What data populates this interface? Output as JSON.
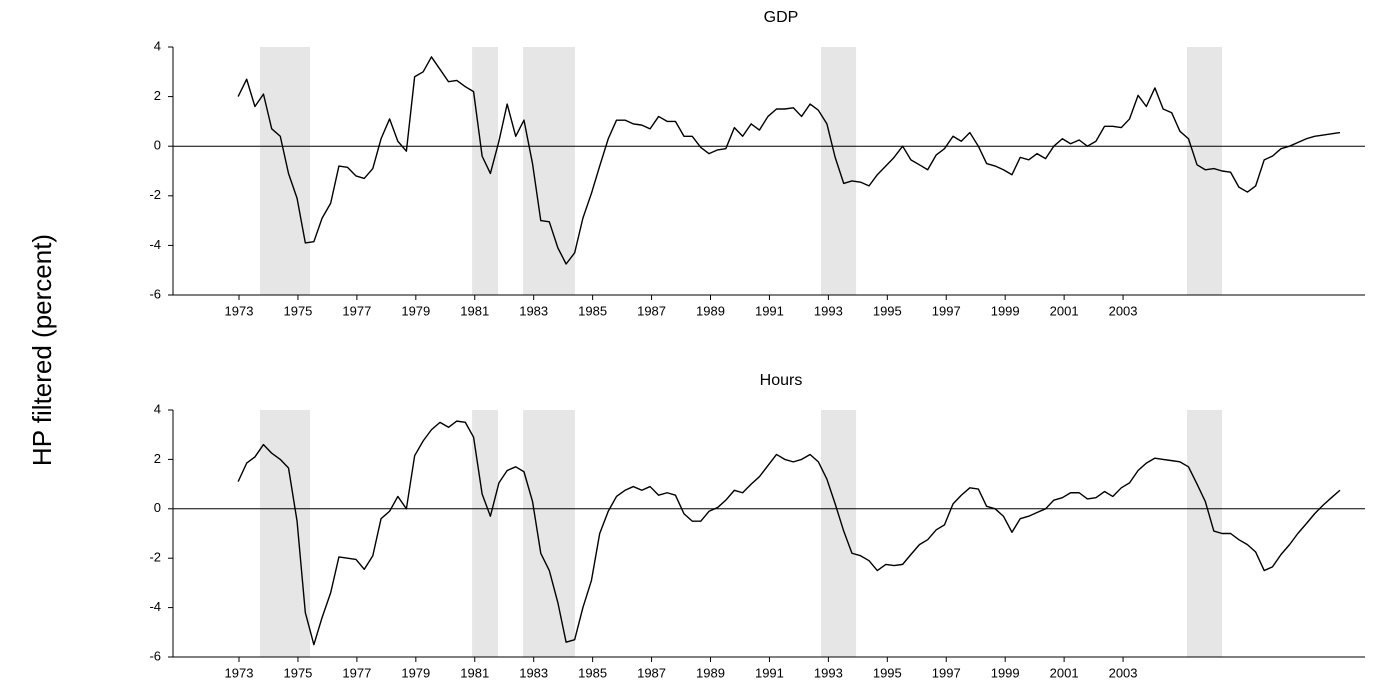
{
  "ylabel": "HP filtered (percent)",
  "chart_data": [
    {
      "type": "line",
      "title": "GDP",
      "color": "#000000",
      "shade_color": "#e6e6e6",
      "xlim": [
        1970.76,
        2011.21
      ],
      "ylim": [
        -6,
        4
      ],
      "yticks": [
        -6,
        -4,
        -2,
        0,
        2,
        4
      ],
      "xticks": [
        1973,
        1975,
        1977,
        1979,
        1981,
        1983,
        1985,
        1987,
        1989,
        1991,
        1993,
        1995,
        1997,
        1999,
        2001,
        2003
      ],
      "shaded_periods": [
        [
          1973.71,
          1975.41
        ],
        [
          1980.91,
          1981.79
        ],
        [
          1982.64,
          1984.4
        ],
        [
          1992.75,
          1993.94
        ],
        [
          2005.17,
          2006.36
        ]
      ],
      "x": [
        1972.97,
        1973.26,
        1973.54,
        1973.83,
        1974.11,
        1974.4,
        1974.68,
        1974.97,
        1975.25,
        1975.54,
        1975.82,
        1976.11,
        1976.39,
        1976.68,
        1976.97,
        1977.25,
        1977.54,
        1977.82,
        1978.11,
        1978.39,
        1978.68,
        1978.96,
        1979.25,
        1979.53,
        1979.82,
        1980.11,
        1980.39,
        1980.68,
        1980.96,
        1981.25,
        1981.53,
        1981.82,
        1982.1,
        1982.39,
        1982.67,
        1982.96,
        1983.24,
        1983.53,
        1983.82,
        1984.1,
        1984.39,
        1984.67,
        1984.96,
        1985.24,
        1985.53,
        1985.81,
        1986.1,
        1986.38,
        1986.67,
        1986.95,
        1987.24,
        1987.53,
        1987.81,
        1988.1,
        1988.38,
        1988.67,
        1988.95,
        1989.24,
        1989.52,
        1989.81,
        1990.09,
        1990.38,
        1990.66,
        1990.95,
        1991.24,
        1991.52,
        1991.81,
        1992.09,
        1992.38,
        1992.66,
        1992.95,
        1993.23,
        1993.52,
        1993.8,
        1994.09,
        1994.38,
        1994.66,
        1994.95,
        1995.23,
        1995.52,
        1995.8,
        1996.09,
        1996.37,
        1996.66,
        1996.94,
        1997.23,
        1997.51,
        1997.8,
        1998.09,
        1998.37,
        1998.66,
        1998.94,
        1999.23,
        1999.51,
        1999.8,
        2000.08,
        2000.37,
        2000.65,
        2000.94,
        2001.22,
        2001.51,
        2001.79,
        2002.08,
        2002.37,
        2002.65,
        2002.94,
        2003.22,
        2003.51,
        2003.79,
        2004.08,
        2004.36,
        2004.65,
        2004.93,
        2005.22,
        2005.51,
        2005.79,
        2006.08,
        2006.36,
        2006.65,
        2006.93,
        2007.22,
        2007.5,
        2007.79,
        2008.07,
        2008.36,
        2008.65,
        2008.93,
        2009.22,
        2009.5,
        2009.79,
        2010.07,
        2010.36
      ],
      "values": [
        2.0,
        2.7,
        1.6,
        2.1,
        0.7,
        0.4,
        -1.1,
        -2.1,
        -3.9,
        -3.85,
        -2.9,
        -2.3,
        -0.8,
        -0.85,
        -1.2,
        -1.3,
        -0.9,
        0.3,
        1.1,
        0.2,
        -0.2,
        2.8,
        3.0,
        3.6,
        3.1,
        2.6,
        2.65,
        2.4,
        2.2,
        -0.4,
        -1.1,
        0.2,
        1.7,
        0.4,
        1.05,
        -0.7,
        -3.0,
        -3.05,
        -4.1,
        -4.75,
        -4.3,
        -2.9,
        -1.9,
        -0.8,
        0.3,
        1.05,
        1.05,
        0.9,
        0.85,
        0.7,
        1.2,
        1.0,
        1.0,
        0.4,
        0.4,
        -0.05,
        -0.3,
        -0.15,
        -0.1,
        0.75,
        0.4,
        0.9,
        0.65,
        1.2,
        1.5,
        1.5,
        1.55,
        1.2,
        1.7,
        1.45,
        0.9,
        -0.45,
        -1.5,
        -1.4,
        -1.45,
        -1.6,
        -1.15,
        -0.8,
        -0.45,
        0.0,
        -0.55,
        -0.75,
        -0.95,
        -0.35,
        -0.1,
        0.4,
        0.2,
        0.55,
        0.0,
        -0.7,
        -0.8,
        -0.95,
        -1.15,
        -0.45,
        -0.55,
        -0.3,
        -0.5,
        0.0,
        0.3,
        0.1,
        0.25,
        0.0,
        0.2,
        0.8,
        0.8,
        0.75,
        1.1,
        2.05,
        1.6,
        2.35,
        1.5,
        1.35,
        0.6,
        0.3,
        -0.75,
        -0.95,
        -0.9,
        -1.0,
        -1.05,
        -1.65,
        -1.85,
        -1.6,
        -0.55,
        -0.4,
        -0.1,
        0.0,
        0.15,
        0.3,
        0.4,
        0.45,
        0.5,
        0.55
      ]
    },
    {
      "type": "line",
      "title": "Hours",
      "color": "#000000",
      "shade_color": "#e6e6e6",
      "xlim": [
        1970.76,
        2011.21
      ],
      "ylim": [
        -6,
        4
      ],
      "yticks": [
        -6,
        -4,
        -2,
        0,
        2,
        4
      ],
      "xticks": [
        1973,
        1975,
        1977,
        1979,
        1981,
        1983,
        1985,
        1987,
        1989,
        1991,
        1993,
        1995,
        1997,
        1999,
        2001,
        2003
      ],
      "shaded_periods": [
        [
          1973.71,
          1975.41
        ],
        [
          1980.91,
          1981.79
        ],
        [
          1982.64,
          1984.4
        ],
        [
          1992.75,
          1993.94
        ],
        [
          2005.17,
          2006.36
        ]
      ],
      "x": [
        1972.97,
        1973.26,
        1973.54,
        1973.83,
        1974.11,
        1974.4,
        1974.68,
        1974.97,
        1975.25,
        1975.54,
        1975.82,
        1976.11,
        1976.39,
        1976.68,
        1976.97,
        1977.25,
        1977.54,
        1977.82,
        1978.11,
        1978.39,
        1978.68,
        1978.96,
        1979.25,
        1979.53,
        1979.82,
        1980.11,
        1980.39,
        1980.68,
        1980.96,
        1981.25,
        1981.53,
        1981.82,
        1982.1,
        1982.39,
        1982.67,
        1982.96,
        1983.24,
        1983.53,
        1983.82,
        1984.1,
        1984.39,
        1984.67,
        1984.96,
        1985.24,
        1985.53,
        1985.81,
        1986.1,
        1986.38,
        1986.67,
        1986.95,
        1987.24,
        1987.53,
        1987.81,
        1988.1,
        1988.38,
        1988.67,
        1988.95,
        1989.24,
        1989.52,
        1989.81,
        1990.09,
        1990.38,
        1990.66,
        1990.95,
        1991.24,
        1991.52,
        1991.81,
        1992.09,
        1992.38,
        1992.66,
        1992.95,
        1993.23,
        1993.52,
        1993.8,
        1994.09,
        1994.38,
        1994.66,
        1994.95,
        1995.23,
        1995.52,
        1995.8,
        1996.09,
        1996.37,
        1996.66,
        1996.94,
        1997.23,
        1997.51,
        1997.8,
        1998.09,
        1998.37,
        1998.66,
        1998.94,
        1999.23,
        1999.51,
        1999.8,
        2000.08,
        2000.37,
        2000.65,
        2000.94,
        2001.22,
        2001.51,
        2001.79,
        2002.08,
        2002.37,
        2002.65,
        2002.94,
        2003.22,
        2003.51,
        2003.79,
        2004.08,
        2004.36,
        2004.65,
        2004.93,
        2005.22,
        2005.51,
        2005.79,
        2006.08,
        2006.36,
        2006.65,
        2006.93,
        2007.22,
        2007.5,
        2007.79,
        2008.07,
        2008.36,
        2008.65,
        2008.93,
        2009.22,
        2009.5,
        2009.79,
        2010.07,
        2010.36
      ],
      "values": [
        1.1,
        1.85,
        2.1,
        2.6,
        2.25,
        2.0,
        1.65,
        -0.5,
        -4.2,
        -5.5,
        -4.4,
        -3.4,
        -1.95,
        -2.0,
        -2.05,
        -2.45,
        -1.9,
        -0.4,
        -0.1,
        0.5,
        0.0,
        2.15,
        2.75,
        3.2,
        3.5,
        3.3,
        3.55,
        3.5,
        2.9,
        0.6,
        -0.3,
        1.05,
        1.55,
        1.7,
        1.5,
        0.3,
        -1.8,
        -2.5,
        -3.8,
        -5.4,
        -5.3,
        -4.0,
        -2.9,
        -1.0,
        -0.1,
        0.5,
        0.75,
        0.9,
        0.75,
        0.9,
        0.55,
        0.65,
        0.55,
        -0.2,
        -0.5,
        -0.5,
        -0.1,
        0.05,
        0.35,
        0.75,
        0.65,
        1.0,
        1.3,
        1.75,
        2.2,
        2.0,
        1.9,
        2.0,
        2.2,
        1.9,
        1.2,
        0.2,
        -0.9,
        -1.8,
        -1.9,
        -2.1,
        -2.5,
        -2.25,
        -2.3,
        -2.25,
        -1.85,
        -1.45,
        -1.25,
        -0.85,
        -0.65,
        0.2,
        0.55,
        0.85,
        0.8,
        0.1,
        0.0,
        -0.3,
        -0.95,
        -0.4,
        -0.3,
        -0.15,
        0.0,
        0.35,
        0.45,
        0.65,
        0.65,
        0.4,
        0.45,
        0.7,
        0.5,
        0.85,
        1.05,
        1.55,
        1.85,
        2.05,
        2.0,
        1.95,
        1.9,
        1.7,
        1.0,
        0.3,
        -0.9,
        -1.0,
        -1.0,
        -1.25,
        -1.45,
        -1.75,
        -2.5,
        -2.35,
        -1.85,
        -1.45,
        -1.0,
        -0.6,
        -0.2,
        0.15,
        0.45,
        0.75
      ]
    }
  ]
}
